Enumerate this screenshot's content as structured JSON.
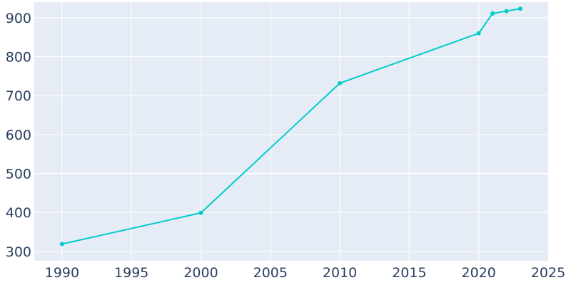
{
  "chart_data": {
    "type": "line",
    "title": "",
    "xlabel": "",
    "ylabel": "",
    "xlim": [
      1988,
      2025
    ],
    "ylim": [
      276,
      940
    ],
    "x_ticks": [
      1990,
      1995,
      2000,
      2005,
      2010,
      2015,
      2020,
      2025
    ],
    "y_ticks": [
      300,
      400,
      500,
      600,
      700,
      800,
      900
    ],
    "grid": true,
    "legend": "none",
    "colors": {
      "plot_background": "#e5ecf6",
      "grid": "#ffffff",
      "line": "#00cccc",
      "tick_text": "#2a3f5f"
    },
    "series": [
      {
        "x": [
          1990,
          2000,
          2010,
          2020,
          2021,
          2022,
          2023
        ],
        "y": [
          319,
          399,
          732,
          860,
          911,
          917,
          923
        ]
      }
    ]
  }
}
